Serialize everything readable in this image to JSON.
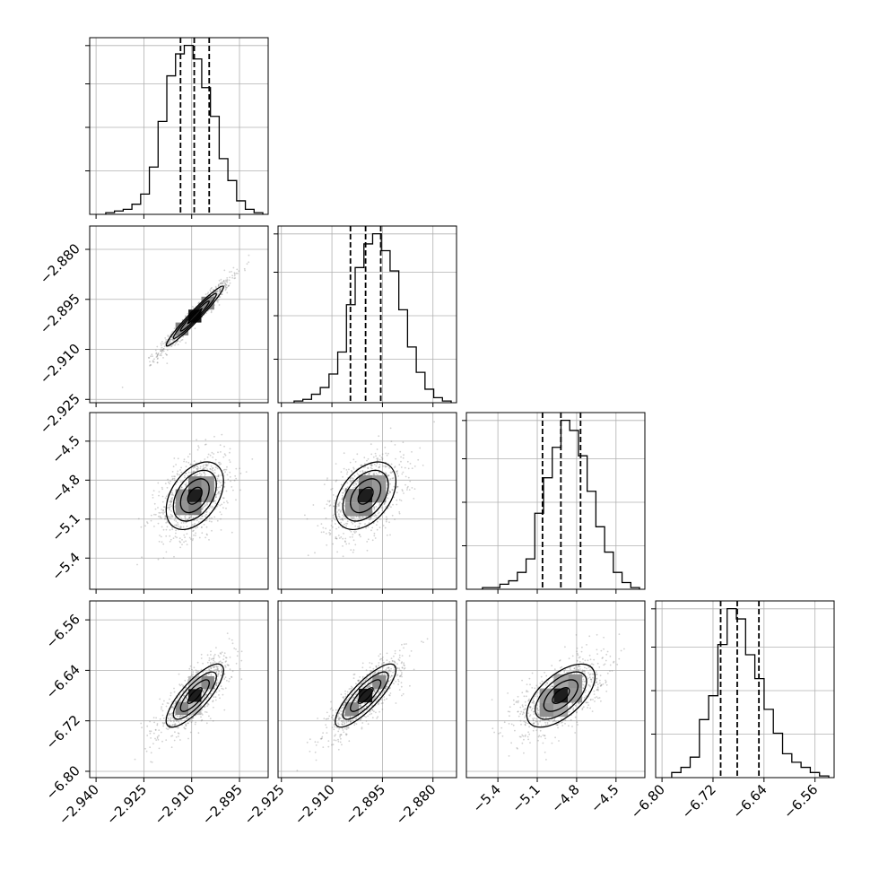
{
  "chart_data": {
    "type": "corner",
    "grid": true,
    "params": [
      {
        "range": [
          -2.942,
          -2.886
        ],
        "ticks": [
          -2.94,
          -2.925,
          -2.91,
          -2.895
        ],
        "tick_labels": [
          "−2.940",
          "−2.925",
          "−2.910",
          "−2.895"
        ],
        "quantiles": [
          -2.9135,
          -2.9092,
          -2.9045
        ],
        "hist": [
          1,
          2,
          3,
          6,
          12,
          28,
          55,
          82,
          95,
          100,
          92,
          75,
          58,
          33,
          20,
          8,
          3,
          1
        ],
        "mean": -2.909,
        "sd": 0.0045
      },
      {
        "range": [
          -2.926,
          -2.873
        ],
        "ticks": [
          -2.925,
          -2.91,
          -2.895,
          -2.88
        ],
        "tick_labels": [
          "−2.925",
          "−2.910",
          "−2.895",
          "−2.880"
        ],
        "quantiles": [
          -2.9045,
          -2.9,
          -2.8955
        ],
        "hist": [
          1,
          2,
          5,
          9,
          17,
          30,
          58,
          80,
          94,
          100,
          90,
          78,
          55,
          33,
          18,
          8,
          3,
          1
        ],
        "mean": -2.9,
        "sd": 0.0045
      },
      {
        "range": [
          -5.64,
          -4.28
        ],
        "ticks": [
          -5.4,
          -5.1,
          -4.8,
          -4.5
        ],
        "tick_labels": [
          "−5.4",
          "−5.1",
          "−4.8",
          "−4.5"
        ],
        "quantiles": [
          -5.06,
          -4.92,
          -4.77
        ],
        "hist": [
          1,
          1,
          3,
          5,
          10,
          18,
          45,
          66,
          84,
          100,
          94,
          79,
          58,
          37,
          22,
          10,
          4,
          1
        ],
        "mean": -4.92,
        "sd": 0.13
      },
      {
        "range": [
          -6.81,
          -6.53
        ],
        "ticks": [
          -6.8,
          -6.72,
          -6.64,
          -6.56
        ],
        "tick_labels": [
          "−6.80",
          "−6.72",
          "−6.64",
          "−6.56"
        ],
        "quantiles": [
          -6.708,
          -6.682,
          -6.648
        ],
        "hist": [
          3,
          6,
          12,
          34,
          48,
          78,
          99,
          93,
          72,
          58,
          40,
          26,
          14,
          9,
          6,
          3,
          1
        ],
        "mean": -6.68,
        "sd": 0.025
      }
    ],
    "correlations": [
      [
        1.0,
        0.97,
        0.42,
        0.8
      ],
      [
        0.97,
        1.0,
        0.42,
        0.82
      ],
      [
        0.42,
        0.42,
        1.0,
        0.6
      ],
      [
        0.8,
        0.82,
        0.6,
        1.0
      ]
    ],
    "contour_levels_sigma": [
      0.5,
      1.0,
      1.5,
      2.0
    ]
  }
}
